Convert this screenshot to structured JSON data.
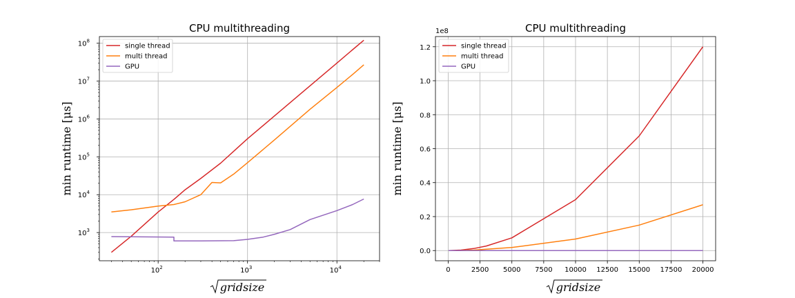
{
  "chart_data": [
    {
      "type": "line",
      "title": "CPU multithreading",
      "ylabel": "min runtime [μs]",
      "xlabel": "√gridsize",
      "x_scale": "log",
      "y_scale": "log",
      "grid": true,
      "legend_position": "top-left",
      "xlim": [
        22,
        30000
      ],
      "ylim": [
        180,
        150000000
      ],
      "xticks": [
        {
          "value": 100,
          "base": "10",
          "exp": "2"
        },
        {
          "value": 1000,
          "base": "10",
          "exp": "3"
        },
        {
          "value": 10000,
          "base": "10",
          "exp": "4"
        }
      ],
      "yticks": [
        {
          "value": 1000,
          "base": "10",
          "exp": "3"
        },
        {
          "value": 10000,
          "base": "10",
          "exp": "4"
        },
        {
          "value": 100000,
          "base": "10",
          "exp": "5"
        },
        {
          "value": 1000000,
          "base": "10",
          "exp": "6"
        },
        {
          "value": 10000000,
          "base": "10",
          "exp": "7"
        },
        {
          "value": 100000000,
          "base": "10",
          "exp": "8"
        }
      ],
      "series": [
        {
          "name": "single thread",
          "color": "#d62728",
          "points": [
            [
              30,
              300
            ],
            [
              50,
              800
            ],
            [
              100,
              3500
            ],
            [
              150,
              7500
            ],
            [
              200,
              13500
            ],
            [
              300,
              27000
            ],
            [
              500,
              68000
            ],
            [
              700,
              140000
            ],
            [
              1000,
              300000
            ],
            [
              2000,
              1200000
            ],
            [
              5000,
              7500000
            ],
            [
              10000,
              30000000
            ],
            [
              15000,
              67500000
            ],
            [
              20000,
              120000000
            ]
          ]
        },
        {
          "name": "multi thread",
          "color": "#ff7f0e",
          "points": [
            [
              30,
              3500
            ],
            [
              50,
              4000
            ],
            [
              100,
              5000
            ],
            [
              150,
              5500
            ],
            [
              200,
              6500
            ],
            [
              300,
              10000
            ],
            [
              400,
              21000
            ],
            [
              500,
              20500
            ],
            [
              700,
              35000
            ],
            [
              1000,
              70000
            ],
            [
              2000,
              280000
            ],
            [
              5000,
              1800000
            ],
            [
              10000,
              6800000
            ],
            [
              15000,
              15000000
            ],
            [
              20000,
              27000000
            ]
          ]
        },
        {
          "name": "GPU",
          "color": "#9467bd",
          "points": [
            [
              30,
              780
            ],
            [
              150,
              760
            ],
            [
              150,
              600
            ],
            [
              300,
              600
            ],
            [
              700,
              610
            ],
            [
              1000,
              660
            ],
            [
              1500,
              760
            ],
            [
              2000,
              900
            ],
            [
              3000,
              1200
            ],
            [
              5000,
              2200
            ],
            [
              10000,
              3800
            ],
            [
              15000,
              5500
            ],
            [
              20000,
              7700
            ]
          ]
        }
      ]
    },
    {
      "type": "line",
      "title": "CPU multithreading",
      "ylabel": "min runtime [μs]",
      "xlabel": "√gridsize",
      "x_scale": "linear",
      "y_scale": "linear",
      "grid": true,
      "legend_position": "top-left",
      "offset_text": "1e8",
      "xlim": [
        -1000,
        21000
      ],
      "ylim": [
        -6000000,
        126000000
      ],
      "xticks": [
        "0",
        "2500",
        "5000",
        "7500",
        "10000",
        "12500",
        "15000",
        "17500",
        "20000"
      ],
      "yticks": [
        "0.0",
        "0.2",
        "0.4",
        "0.6",
        "0.8",
        "1.0",
        "1.2"
      ],
      "yticks_scale": 100000000,
      "series": [
        {
          "name": "single thread",
          "color": "#d62728",
          "points": [
            [
              30,
              300
            ],
            [
              1000,
              300000
            ],
            [
              2000,
              1200000
            ],
            [
              3000,
              2700000
            ],
            [
              5000,
              7500000
            ],
            [
              10000,
              30000000
            ],
            [
              15000,
              67500000
            ],
            [
              20000,
              120000000
            ]
          ]
        },
        {
          "name": "multi thread",
          "color": "#ff7f0e",
          "points": [
            [
              30,
              3500
            ],
            [
              1000,
              70000
            ],
            [
              2000,
              280000
            ],
            [
              5000,
              1800000
            ],
            [
              10000,
              6800000
            ],
            [
              15000,
              15000000
            ],
            [
              20000,
              27000000
            ]
          ]
        },
        {
          "name": "GPU",
          "color": "#9467bd",
          "points": [
            [
              30,
              780
            ],
            [
              1000,
              660
            ],
            [
              5000,
              2200
            ],
            [
              10000,
              3800
            ],
            [
              20000,
              7700
            ]
          ]
        }
      ]
    }
  ]
}
